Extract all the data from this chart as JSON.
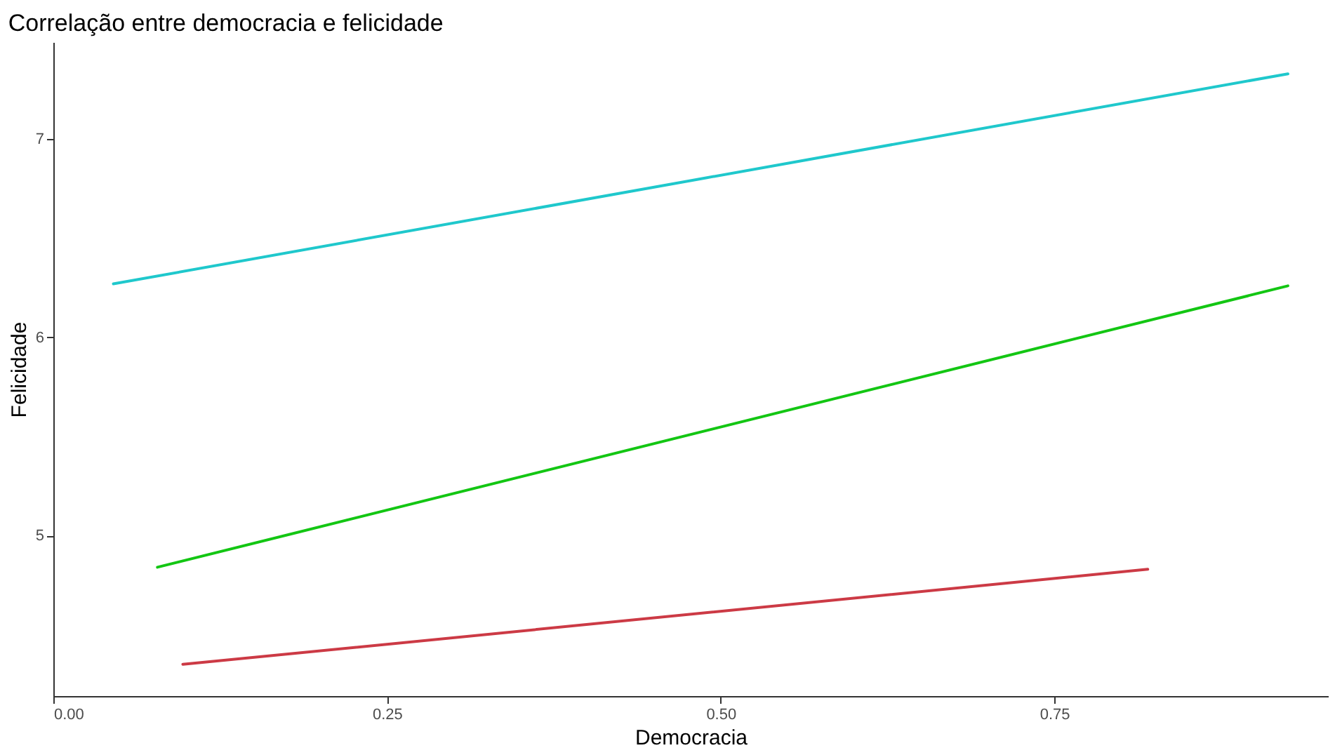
{
  "chart_data": {
    "type": "line",
    "title": "Correlação entre democracia e felicidade",
    "xlabel": "Democracia",
    "ylabel": "Felicidade",
    "xlim": [
      0,
      0.955
    ],
    "xticks": [
      {
        "value": 0,
        "label": "0.00"
      },
      {
        "value": 0.25,
        "label": "0.25"
      },
      {
        "value": 0.5,
        "label": "0.50"
      },
      {
        "value": 0.75,
        "label": "0.75"
      }
    ],
    "ylim": [
      4.19,
      7.49
    ],
    "yticks": [
      5,
      6,
      7
    ],
    "grid": false,
    "line_style": "solid",
    "marker": "none",
    "series": [
      {
        "color": "#1fc8cc",
        "x": [
          0.045,
          0.925
        ],
        "values": [
          6.27,
          7.33
        ]
      },
      {
        "color": "#13c613",
        "x": [
          0.078,
          0.925
        ],
        "values": [
          4.84,
          6.26
        ]
      },
      {
        "color": "#cc3a45",
        "x": [
          0.097,
          0.82
        ],
        "values": [
          4.35,
          4.83
        ]
      }
    ]
  }
}
